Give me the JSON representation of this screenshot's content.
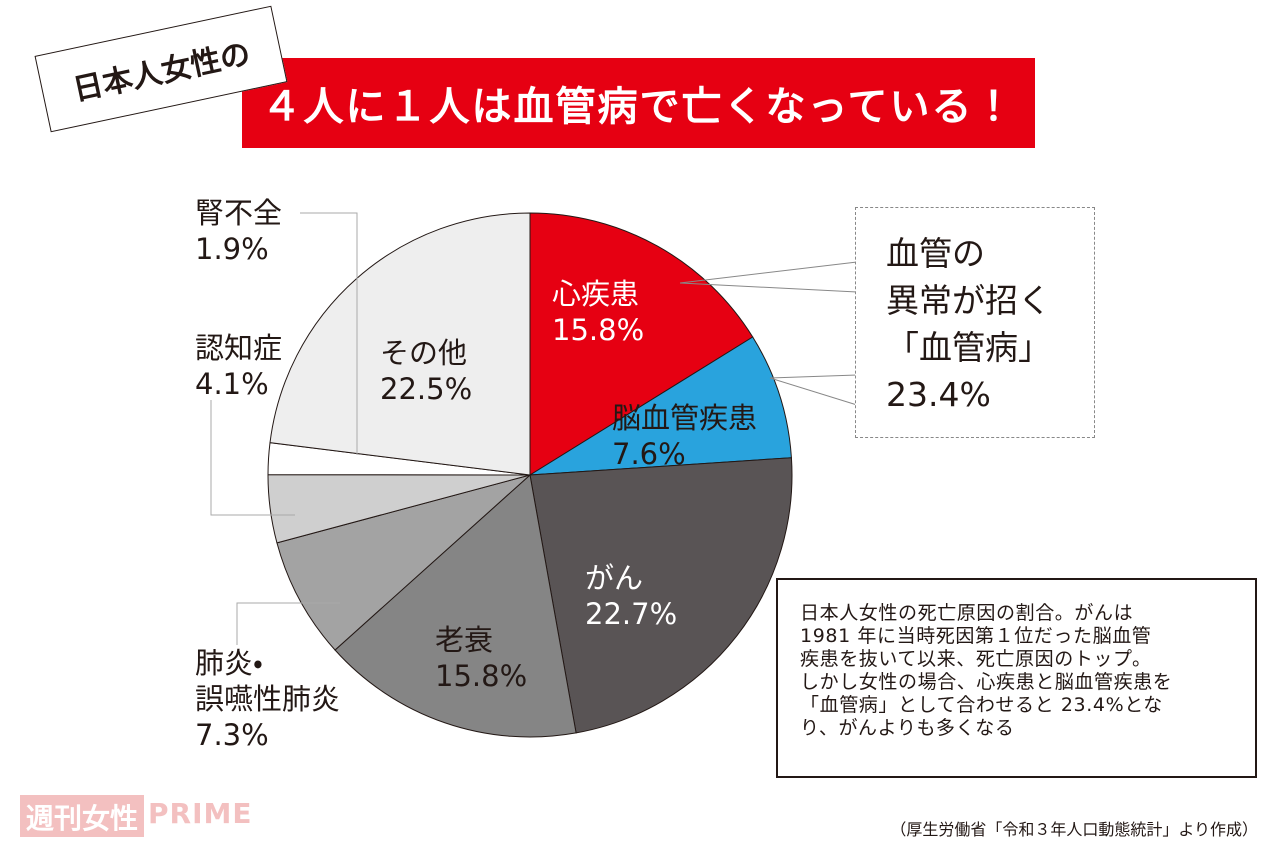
{
  "header": {
    "tag": "日本人女性の",
    "title": "４人に１人は血管病で亡くなっている！"
  },
  "chart_data": {
    "type": "pie",
    "categories": [
      "心疾患",
      "脳血管疾患",
      "がん",
      "老衰",
      "肺炎・\n誤嚥性肺炎",
      "認知症",
      "腎不全",
      "その他"
    ],
    "values": [
      15.8,
      7.6,
      22.7,
      15.8,
      7.3,
      4.1,
      1.9,
      22.5
    ],
    "value_labels": [
      "15.8%",
      "7.6%",
      "22.7%",
      "15.8%",
      "7.3%",
      "4.1%",
      "1.9%",
      "22.5%"
    ],
    "colors": [
      "#e60012",
      "#29a3dd",
      "#595455",
      "#858585",
      "#a3a3a3",
      "#cfcfcf",
      "#ffffff",
      "#eeeeee"
    ]
  },
  "callout": [
    "血管の",
    "異常が招く",
    "「血管病」",
    "23.4%"
  ],
  "note": [
    "日本人女性の死亡原因の割合。がんは",
    "1981 年に当時死因第１位だった脳血管",
    "疾患を抜いて以来、死亡原因のトップ。",
    "しかし女性の場合、心疾患と脳血管疾患を",
    "「血管病」として合わせると 23.4%とな",
    "り、がんよりも多くなる"
  ],
  "source": "（厚生労働省「令和３年人口動態統計」より作成）",
  "logo": [
    "週刊女性",
    "PRIME"
  ]
}
